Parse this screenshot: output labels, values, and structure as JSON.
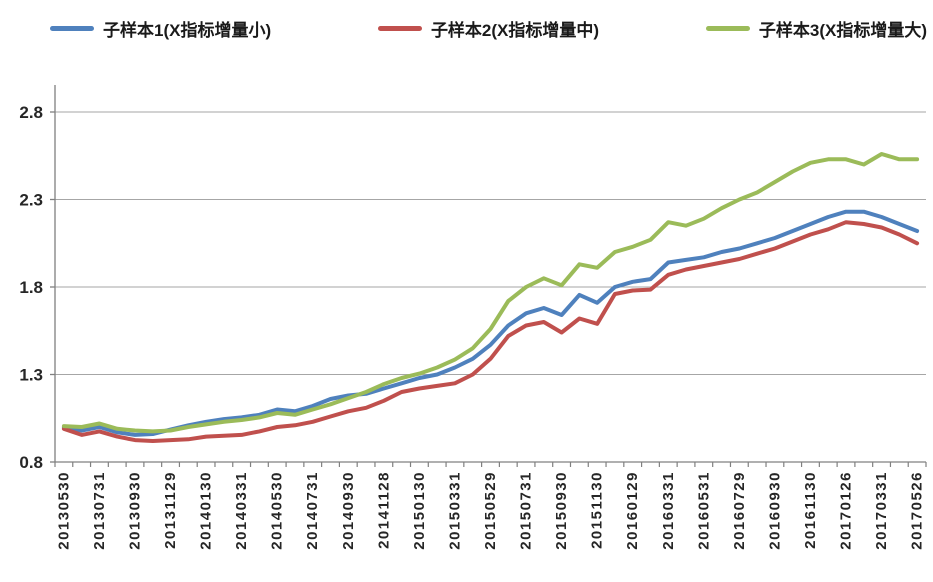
{
  "chart_data": {
    "type": "line",
    "title": "",
    "xlabel": "",
    "ylabel": "",
    "ylim": [
      0.8,
      2.8
    ],
    "yticks": [
      0.8,
      1.3,
      1.8,
      2.3,
      2.8
    ],
    "grid": "horizontal",
    "legend_position": "top",
    "x_count": 49,
    "label_every": 2,
    "x_labels": [
      "20130530",
      "20130731",
      "20130930",
      "20131129",
      "20140130",
      "20140331",
      "20140530",
      "20140731",
      "20140930",
      "20141128",
      "20150130",
      "20150331",
      "20150529",
      "20150731",
      "20150930",
      "20151130",
      "20160129",
      "20160331",
      "20160531",
      "20160729",
      "20160930",
      "20161130",
      "20170126",
      "20170331",
      "20170526"
    ],
    "series": [
      {
        "name": "子样本1(X指标增量小)",
        "color": "#4F81BD",
        "values": [
          1.0,
          0.98,
          1.0,
          0.97,
          0.955,
          0.96,
          0.985,
          1.01,
          1.03,
          1.045,
          1.055,
          1.07,
          1.1,
          1.09,
          1.12,
          1.16,
          1.18,
          1.19,
          1.22,
          1.25,
          1.28,
          1.3,
          1.34,
          1.39,
          1.47,
          1.58,
          1.65,
          1.68,
          1.64,
          1.755,
          1.71,
          1.8,
          1.83,
          1.845,
          1.94,
          1.955,
          1.97,
          2.0,
          2.02,
          2.05,
          2.08,
          2.12,
          2.16,
          2.2,
          2.23,
          2.23,
          2.2,
          2.16,
          2.12
        ]
      },
      {
        "name": "子样本2(X指标增量中)",
        "color": "#C0504D",
        "values": [
          0.99,
          0.955,
          0.975,
          0.945,
          0.925,
          0.92,
          0.925,
          0.93,
          0.945,
          0.95,
          0.955,
          0.975,
          1.0,
          1.01,
          1.03,
          1.06,
          1.09,
          1.11,
          1.15,
          1.2,
          1.22,
          1.235,
          1.25,
          1.3,
          1.39,
          1.52,
          1.58,
          1.6,
          1.54,
          1.62,
          1.59,
          1.76,
          1.78,
          1.785,
          1.87,
          1.9,
          1.92,
          1.94,
          1.96,
          1.99,
          2.02,
          2.06,
          2.1,
          2.13,
          2.17,
          2.16,
          2.14,
          2.1,
          2.05
        ]
      },
      {
        "name": "子样本3(X指标增量大)",
        "color": "#9BBB59",
        "values": [
          1.005,
          1.0,
          1.02,
          0.99,
          0.98,
          0.975,
          0.98,
          1.0,
          1.015,
          1.03,
          1.04,
          1.055,
          1.08,
          1.07,
          1.1,
          1.13,
          1.165,
          1.2,
          1.245,
          1.28,
          1.305,
          1.34,
          1.385,
          1.45,
          1.56,
          1.72,
          1.8,
          1.85,
          1.81,
          1.93,
          1.91,
          2.0,
          2.03,
          2.07,
          2.17,
          2.15,
          2.19,
          2.25,
          2.3,
          2.34,
          2.4,
          2.46,
          2.51,
          2.53,
          2.53,
          2.5,
          2.56,
          2.53,
          2.53
        ]
      }
    ]
  },
  "colors": {
    "background": "#FFFFFF",
    "axis": "#808080",
    "grid": "#A6A6A6",
    "tick": "#808080",
    "label": "#262626"
  }
}
